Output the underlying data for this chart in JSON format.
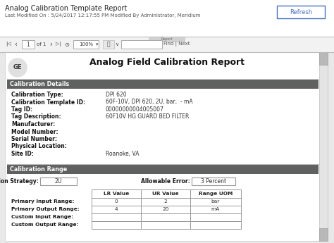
{
  "title": "Analog Calibration Template Report",
  "subtitle": "Last Modified On : 5/24/2017 12:17:55 PM Modified By Administrator, Meridium",
  "refresh_btn": "Refresh",
  "report_title": "Analog Field Calibration Report",
  "section1_header": "Calibration Details",
  "details_rows": [
    [
      "Calibration Type:",
      "DPI 620"
    ],
    [
      "Calibration Template ID:",
      "60F-10V, DPI 620, 2U, bar,  - mA"
    ],
    [
      "Tag ID:",
      "00000000004005007"
    ],
    [
      "Tag Description:",
      "60F10V HG GUARD BED FILTER"
    ],
    [
      "Manufacturer:",
      ""
    ],
    [
      "Model Number:",
      ""
    ],
    [
      "Serial Number:",
      ""
    ],
    [
      "Physical Location:",
      ""
    ],
    [
      "Site ID:",
      "Roanoke, VA"
    ]
  ],
  "section2_header": "Calibration Range",
  "cal_strategy_label": "Calibration Strategy:",
  "cal_strategy_value": "2U",
  "allowable_error_label": "Allowable Error:",
  "allowable_error_value": "3 Percent",
  "table_headers": [
    "LR Value",
    "UR Value",
    "Range UOM"
  ],
  "table_rows": [
    [
      "Primary Input Range:",
      "0",
      "2",
      "bar"
    ],
    [
      "Primary Output Range:",
      "4",
      "20",
      "mA"
    ],
    [
      "Custom Input Range:",
      "",
      "",
      ""
    ],
    [
      "Custom Output Range:",
      "",
      "",
      ""
    ]
  ],
  "bg_color": "#e8e8e8",
  "white": "#ffffff",
  "section_header_bg": "#5f6060",
  "header_fg": "#ffffff",
  "toolbar_bg": "#f2f2f2",
  "report_bg": "#ffffff",
  "refresh_btn_border": "#4472c4",
  "refresh_btn_color": "#4472c4",
  "border_light": "#cccccc",
  "border_mid": "#aaaaaa",
  "text_dark": "#111111",
  "text_mid": "#444444",
  "text_light": "#666666",
  "ge_circle_bg": "#e0e0e0"
}
